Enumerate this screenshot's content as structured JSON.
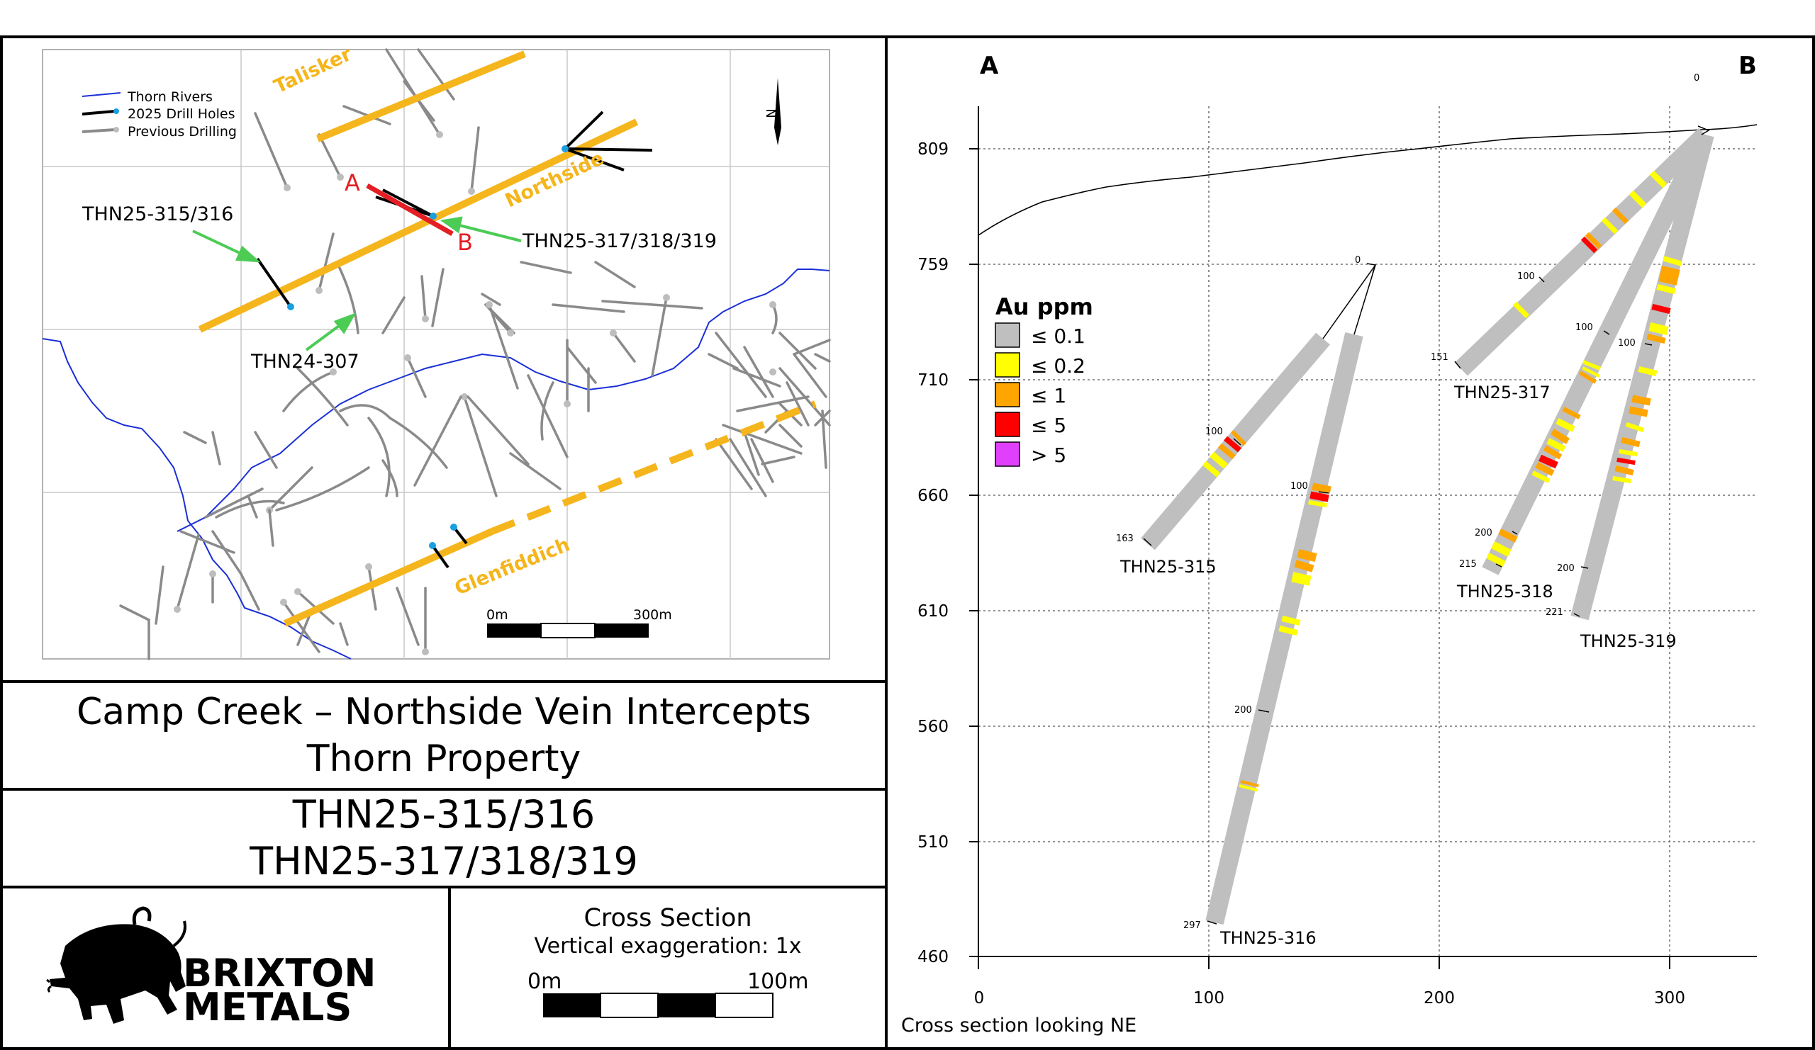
{
  "map": {
    "legend": {
      "rivers": "Thorn Rivers",
      "drill_2025": "2025 Drill Holes",
      "previous": "Previous Drilling"
    },
    "vein_labels": {
      "talisker": "Talisker",
      "northside": "Northside",
      "glenfiddich": "Glenfiddich"
    },
    "section_a": "A",
    "section_b": "B",
    "callouts": {
      "holes_315_316": "THN25-315/316",
      "holes_317_319": "THN25-317/318/319",
      "hole_307": "THN24-307"
    },
    "scale": {
      "start": "0m",
      "end": "300m"
    },
    "north": "N",
    "colors": {
      "vein": "#f5b51c",
      "river": "#1a2fd6",
      "old_drill": "#8a8a8a",
      "section": "#e31e24",
      "arrow": "#4ccb55"
    }
  },
  "title_block": {
    "line1": "Camp Creek – Northside Vein Intercepts",
    "line2": "Thorn Property",
    "holes_line1": "THN25-315/316",
    "holes_line2": "THN25-317/318/319",
    "logo_line1": "BRIXTON",
    "logo_line2": "METALS",
    "section_title": "Cross Section",
    "exaggeration": "Vertical exaggeration: 1x",
    "scale_start": "0m",
    "scale_end": "100m"
  },
  "section": {
    "label_a": "A",
    "label_b": "B",
    "footer": "Cross section looking NE",
    "x_ticks": [
      "0",
      "100",
      "200",
      "300"
    ],
    "y_ticks": [
      "809",
      "759",
      "710",
      "660",
      "610",
      "560",
      "510",
      "460"
    ],
    "legend_title": "Au ppm",
    "legend": [
      {
        "label": "≤ 0.1",
        "color": "#bfbfbf"
      },
      {
        "label": "≤ 0.2",
        "color": "#ffff00"
      },
      {
        "label": "≤ 1",
        "color": "#ffa500"
      },
      {
        "label": "≤ 5",
        "color": "#ff0000"
      },
      {
        "label": "> 5",
        "color": "#e040fb"
      }
    ],
    "holes": [
      {
        "name": "THN25-315",
        "end_depth": "163",
        "marks": [
          "0",
          "100"
        ]
      },
      {
        "name": "THN25-316",
        "end_depth": "297",
        "marks": [
          "100",
          "200"
        ]
      },
      {
        "name": "THN25-317",
        "end_depth": "151",
        "marks": [
          "0",
          "100"
        ]
      },
      {
        "name": "THN25-318",
        "end_depth": "215",
        "marks": [
          "100",
          "200"
        ]
      },
      {
        "name": "THN25-319",
        "end_depth": "221",
        "marks": [
          "100",
          "200"
        ]
      }
    ]
  }
}
